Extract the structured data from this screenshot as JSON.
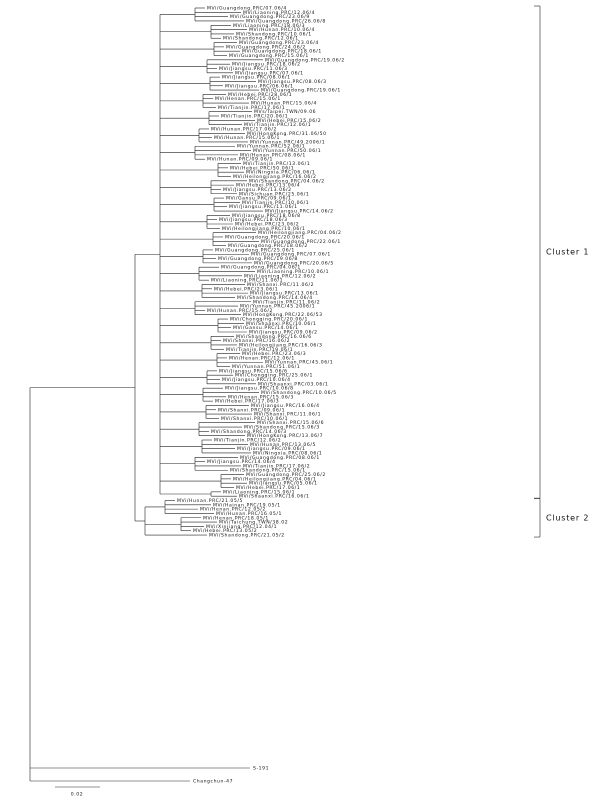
{
  "clusters": [
    {
      "label": "Cluster 1",
      "leaves": [
        "MVi/Guangdong.PRC/07.06/4",
        "MVi/Liaoning.PRC/12.06/4",
        "MVi/Guangdong.PRC/23.06/9",
        "MVi/Guangdong.PRC/26.06/8",
        "MVi/Liaoning.PRC/18.06/3",
        "MVi/Hunan.PRC/10.06/4",
        "MVi/Shandong.PRC/10.06/1",
        "MVi/Shandong.PRC/12.06/1",
        "MVi/Guangdong.PRC/23.06/4",
        "MVi/Guangdong.PRC/24.06/2",
        "MVi/Guangdong.PRC/18.06/1",
        "MVi/Guangdong.PRC/15.06/1",
        "MVi/Guangdong.PRC/19.06/2",
        "MVi/Jiangsu.PRC/18.06/2",
        "MVi/Jiangsu.PRC/11.06/3",
        "MVi/Jiangsu.PRC/07.06/1",
        "MVi/Jiangsu.PRC/08.06/1",
        "MVi/Jiangsu.PRC/08.06/3",
        "MVi/Jiangsu.PRC/06.06/1",
        "MVi/Guangdong.PRC/19.06/1",
        "MVi/Hebei.PRC/28.06/1",
        "MVi/Henan.PRC/15.06/1",
        "MVi/Hunan.PRC/15.06/4",
        "MVi/Tianjin.PRC/17.06/1",
        "MVs/Taipei.TWN/09.06",
        "MVi/Tianjin.PRC/20.06/1",
        "MVi/Hebei.PRC/15.06/2",
        "MVi/Tianjin.PRC/12.06/1",
        "MVi/Hunan.PRC/17.06/2",
        "MVi/HongKong.PRC/31.06/50",
        "MVi/Hunan.PRC/15.06/1",
        "MVi/Yunnan.PRC/49.2006/1",
        "MVi/Yunnan.PRC/52.06/1",
        "MVi/Yunnan.PRC/50.06/1",
        "MVi/Henan.PRC/08.06/1",
        "MVi/Hunan.PRC/09.06/1",
        "MVi/Tianjin.PRC/13.06/1",
        "MVi/Hebei.PRC/50.06/1",
        "MVi/Ningxia.PRC/06.06/1",
        "MVi/Heilongjiang.PRC/16.06/2",
        "MVi/Shandong.PRC/04.06/2",
        "MVi/Hebei.PRC/13.06/4",
        "MVi/Jiangsu.PRC/13.06/2",
        "MVi/Sichuan.PRC/25.06/1",
        "MVi/Gansu.PRC/09.06/1",
        "MVi/Tianjin.PRC/10.06/1",
        "MVi/Jiangsu.PRC/11.06/1",
        "MVi/Jiangsu.PRC/14.06/2",
        "MVi/Jiangsu.PRC/18.06/8",
        "MVi/Jiangsu.PRC/18.06/3",
        "MVi/Hebei.PRC/23.06/2",
        "MVi/Heilongjiang.PRC/10.06/1",
        "MVi/Heilongjiang.PRC/04.06/2",
        "MVi/Guangdong.PRC/20.06/1",
        "MVi/Guangdong.PRC/22.06/1",
        "MVi/Guangdong.PRC/18.06/2",
        "MVi/Guangdong.PRC/25.06/1",
        "MVi/Guangdong.PRC/07.06/1",
        "MVi/Guangdong.PRC/19.06/8",
        "MVi/Guangdong.PRC/20.06/5",
        "MVi/Guangdong.PRC/04.06/1",
        "MVi/Liaoning.PRC/10.06/1",
        "MVi/Liaoning.PRC/12.06/2",
        "MVi/Liaoning.PRC/11.06/1",
        "MVi/Shanxi.PRC/11.06/2",
        "MVi/Hebei.PRC/23.06/1",
        "MVi/Jiangsu.PRC/13.06/1",
        "MVi/Shandong.PRC/14.06/4",
        "MVi/Tianjin.PRC/11.06/2",
        "MVi/Yunnan.PRC/45.2006/1",
        "MVi/Hunan.PRC/15.06/2",
        "MVi/HongKong.PRC/22.06/53",
        "MVi/Chongqing.PRC/20.06/1",
        "MVi/Shaanxi.PRC/10.06/1",
        "MVi/Gansu.PRC/14.06/1",
        "MVi/Jiangsu.PRC/09.06/2",
        "MVi/Shandong.PRC/16.06/6",
        "MVi/Shanxi.PRC/16.06/2",
        "MVi/Heilongjiang.PRC/16.06/3",
        "MVi/Tianjin.PRC/19.06/1",
        "MVi/Hebei.PRC/23.06/3",
        "MVi/Henan.PRC/12.06/1",
        "MVi/Yunnan.PRC/45.06/1",
        "MVi/Yunnan.PRC/51.06/1",
        "MVi/Jiangsu.PRC/15.06/6",
        "MVi/Chongqing.PRC/25.06/1",
        "MVi/Jiangsu.PRC/10.06/4",
        "MVi/Shaanxi.PRC/03.06/1",
        "MVi/Jiangsu.PRC/10.06/8",
        "MVi/Shandong.PRC/10.06/5",
        "MVi/Henan.PRC/15.06/3",
        "MVi/Hebei.PRC/17.06/3",
        "MVi/Jiangsu.PRC/16.06/4",
        "MVi/Shanxi.PRC/09.06/1",
        "MVi/Shanxi.PRC/11.06/1",
        "MVi/Shanxi.PRC/10.06/1",
        "MVi/Shanxi.PRC/15.06/6",
        "MVi/Shandong.PRC/15.06/3",
        "MVi/Shandong.PRC/14.06/3",
        "MVi/HongKong.PRC/13.06/7",
        "MVi/Tianjin.PRC/12.06/2",
        "MVi/Hunan.PRC/13.06/5",
        "MVi/Jiangsu.PRC/09.06/1",
        "MVi/Ningxia.PRC/08.06/1",
        "MVi/Guangdong.PRC/08.06/1",
        "MVi/Jiangsu.PRC/14.06/4",
        "MVi/Tianjin.PRC/17.06/2",
        "MVi/Shandong.PRC/15.06/1",
        "MVi/Guangdong.PRC/25.06/2",
        "MVi/Heilongjiang.PRC/04.06/1",
        "MVi/Jiangsu.PRC/05.06/1",
        "MVi/Hebei.PRC/17.06/1",
        "MVi/Liaoning.PRC/15.06/1",
        "MVi/Shaanxi.PRC/16.06/1"
      ]
    },
    {
      "label": "Cluster 2",
      "leaves": [
        "MVi/Hunan.PRC/21.05/5",
        "MVi/Hainan.PRC/19.05/1",
        "MVi/Henan.PRC/12.05/2",
        "MVi/Hunan.PRC/16.05/1",
        "MVi/Henan.PRC/18.05/1",
        "MVi/Taichung.TWN/38.02",
        "MVi/Xinjiang.PRC/12.04/1",
        "MVi/Hebei.PRC/13.05/2",
        "MVi/Shandong.PRC/21.05/2"
      ]
    }
  ],
  "outgroups": [
    "S-191",
    "Changchun-47"
  ],
  "scale_label": "0.02"
}
